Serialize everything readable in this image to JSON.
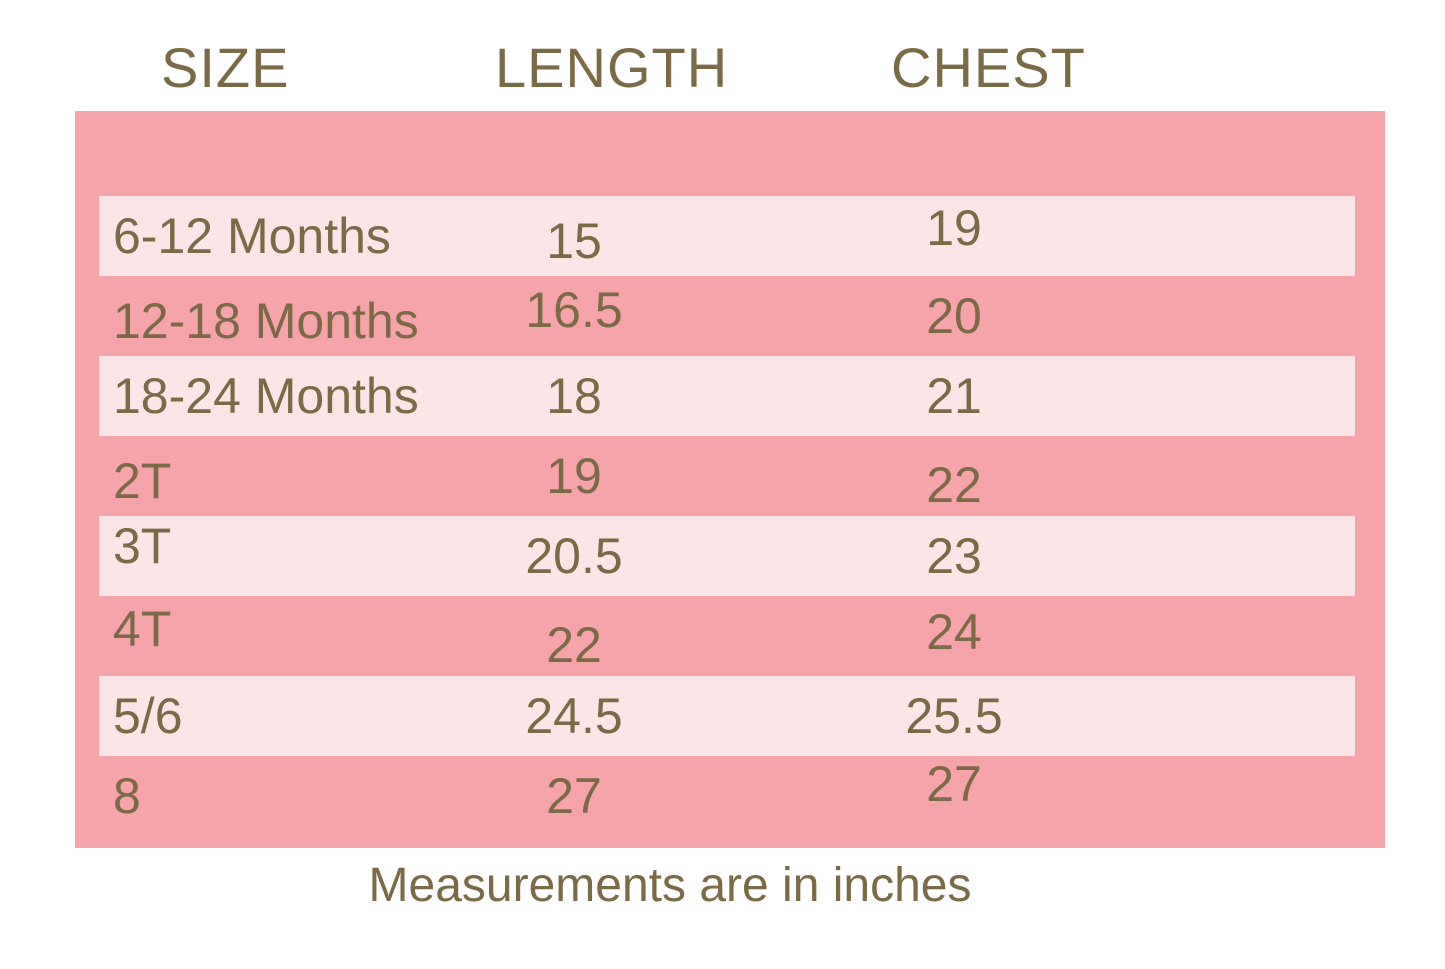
{
  "colors": {
    "panel_pink": "#F5A4AA",
    "stripe_pink": "#FCE5E7",
    "text_olive": "#7A6A45",
    "page_background": "#FFFFFF"
  },
  "table": {
    "headers": [
      "SIZE",
      "LENGTH",
      "CHEST"
    ],
    "rows": [
      {
        "size": "6-12 Months",
        "length": "15",
        "chest": "19"
      },
      {
        "size": "12-18 Months",
        "length": "16.5",
        "chest": "20"
      },
      {
        "size": "18-24 Months",
        "length": "18",
        "chest": "21"
      },
      {
        "size": "2T",
        "length": "19",
        "chest": "22"
      },
      {
        "size": "3T",
        "length": "20.5",
        "chest": "23"
      },
      {
        "size": "4T",
        "length": "22",
        "chest": "24"
      },
      {
        "size": "5/6",
        "length": "24.5",
        "chest": "25.5"
      },
      {
        "size": "8",
        "length": "27",
        "chest": "27"
      }
    ],
    "footnote": "Measurements are in inches"
  }
}
